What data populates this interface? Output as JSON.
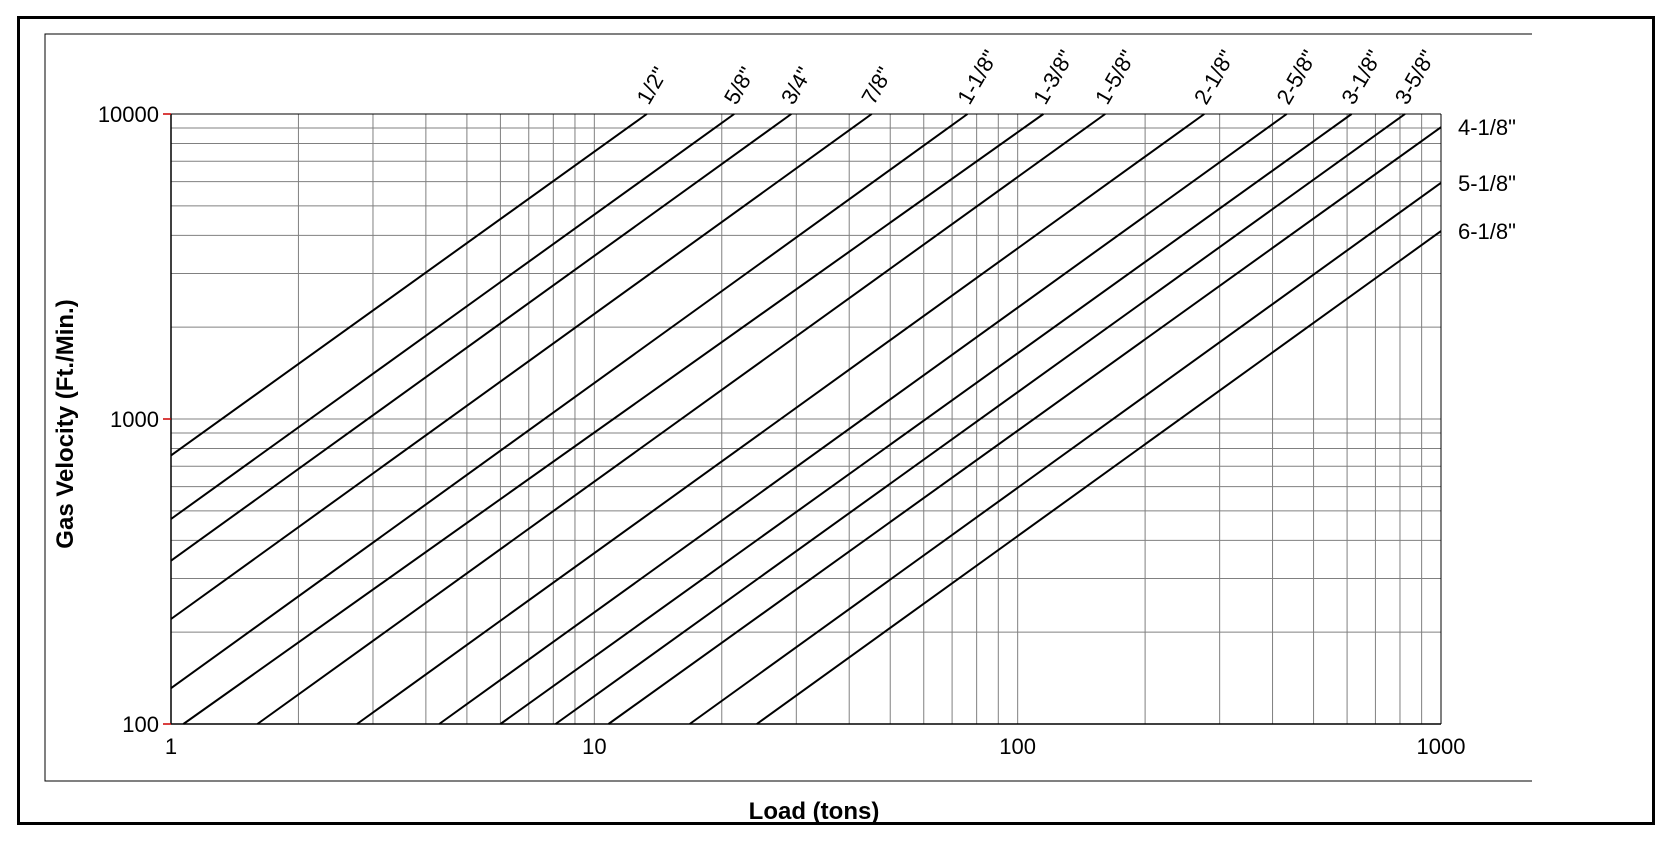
{
  "chart_data": {
    "type": "line",
    "xlabel": "Load (tons)",
    "ylabel": "Gas Velocity (Ft./Min.)",
    "x_scale": "log",
    "y_scale": "log",
    "xlim": [
      1,
      1000
    ],
    "ylim": [
      100,
      10000
    ],
    "x_ticks": [
      {
        "value": 1,
        "label": "1"
      },
      {
        "value": 10,
        "label": "10"
      },
      {
        "value": 100,
        "label": "100"
      },
      {
        "value": 1000,
        "label": "1000"
      }
    ],
    "y_ticks": [
      {
        "value": 100,
        "label": "100"
      },
      {
        "value": 1000,
        "label": "1000"
      },
      {
        "value": 10000,
        "label": "10000"
      }
    ],
    "grid": true,
    "line_color": "#000000",
    "grid_color": "#808080",
    "tick_mark_color": "#cc0000",
    "series": [
      {
        "name": "1/2\"",
        "x": [
          1,
          13.3
        ],
        "y": [
          760,
          10000
        ]
      },
      {
        "name": "5/8\"",
        "x": [
          1,
          21.4
        ],
        "y": [
          470,
          10000
        ]
      },
      {
        "name": "3/4\"",
        "x": [
          1,
          29.2
        ],
        "y": [
          343,
          10000
        ]
      },
      {
        "name": "7/8\"",
        "x": [
          1,
          45.2
        ],
        "y": [
          221,
          10000
        ]
      },
      {
        "name": "1-1/8\"",
        "x": [
          1,
          76.1
        ],
        "y": [
          131,
          10000
        ]
      },
      {
        "name": "1-3/8\"",
        "x": [
          1.07,
          115
        ],
        "y": [
          100,
          10000
        ]
      },
      {
        "name": "1-5/8\"",
        "x": [
          1.6,
          161
        ],
        "y": [
          100,
          10000
        ]
      },
      {
        "name": "2-1/8\"",
        "x": [
          2.75,
          276
        ],
        "y": [
          100,
          10000
        ]
      },
      {
        "name": "2-5/8\"",
        "x": [
          4.3,
          432
        ],
        "y": [
          100,
          10000
        ]
      },
      {
        "name": "3-1/8\"",
        "x": [
          6.0,
          615
        ],
        "y": [
          100,
          10000
        ]
      },
      {
        "name": "3-5/8\"",
        "x": [
          8.1,
          822
        ],
        "y": [
          100,
          10000
        ]
      },
      {
        "name": "4-1/8\"",
        "x": [
          10.8,
          1000
        ],
        "y": [
          100,
          9050
        ]
      },
      {
        "name": "5-1/8\"",
        "x": [
          16.8,
          1000
        ],
        "y": [
          100,
          5950
        ]
      },
      {
        "name": "6-1/8\"",
        "x": [
          24.2,
          1000
        ],
        "y": [
          100,
          4130
        ]
      }
    ]
  }
}
